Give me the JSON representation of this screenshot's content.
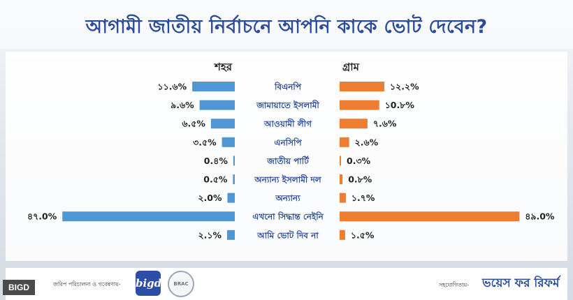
{
  "title": "আগামী জাতীয় নির্বাচনে আপনি কাকে ভোট দেবেন?",
  "colors": {
    "urban": "#4f96d4",
    "rural": "#ed7d31",
    "title": "#2b4c9a"
  },
  "chart_data": {
    "type": "bar",
    "orientation": "horizontal-butterfly",
    "categories": [
      "বিএনপি",
      "জামায়াতে ইসলামী",
      "আওয়ামী লীগ",
      "এনসিপি",
      "জাতীয় পার্টি",
      "অন্যান্য ইসলামী দল",
      "অন্যান্য",
      "এখনো সিদ্ধান্ত নেইনি",
      "আমি ভোট দিব না"
    ],
    "series": [
      {
        "name": "শহর",
        "values": [
          11.6,
          9.6,
          6.5,
          3.5,
          0.4,
          0.5,
          2.0,
          47.0,
          2.1
        ],
        "labels": [
          "১১.৬%",
          "৯.৬%",
          "৬.৫%",
          "৩.৫%",
          "0.৪%",
          "0.৫%",
          "২.0%",
          "৪৭.0%",
          "২.১%"
        ]
      },
      {
        "name": "গ্রাম",
        "values": [
          12.2,
          10.8,
          7.6,
          2.6,
          0.3,
          0.8,
          1.7,
          49.0,
          1.5
        ],
        "labels": [
          "১২.২%",
          "১0.৮%",
          "৭.৬%",
          "২.৬%",
          "0.৩%",
          "0.৮%",
          "১.৭%",
          "৪৯.0%",
          "১.৫%"
        ]
      }
    ],
    "value_unit": "%",
    "xlim": [
      0,
      50
    ]
  },
  "footer": {
    "left_text": "জরিপ পরিচালনা ও গবেষণায়-",
    "bigd_logo_text": "bigd",
    "brac_logo_text": "BRAC",
    "right_text": "সহযোগিতায়-",
    "partner_logo_text": "ভয়েস ফর রিফর্ম"
  },
  "badge": "BIGD"
}
